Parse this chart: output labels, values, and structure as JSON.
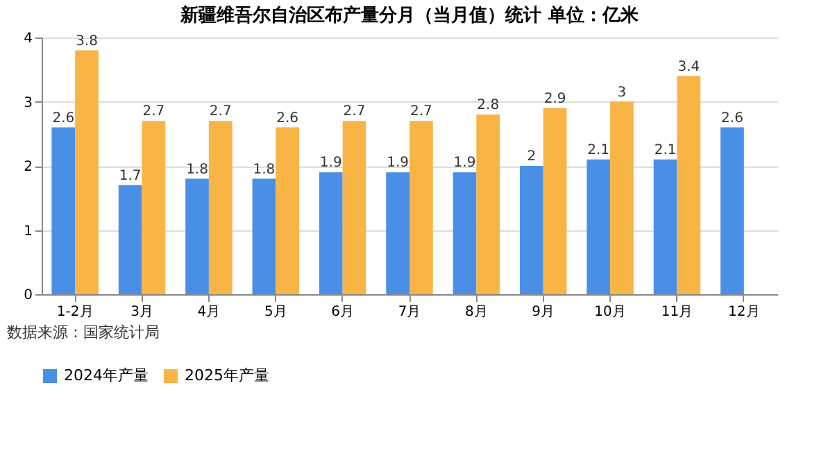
{
  "chart_data": {
    "type": "bar",
    "title": "新疆维吾尔自治区布产量分月（当月值）统计  单位：亿米",
    "categories": [
      "1-2月",
      "3月",
      "4月",
      "5月",
      "6月",
      "7月",
      "8月",
      "9月",
      "10月",
      "11月",
      "12月"
    ],
    "series": [
      {
        "name": "2024年产量",
        "color": "#4a8fe6",
        "values": [
          2.6,
          1.7,
          1.8,
          1.8,
          1.9,
          1.9,
          1.9,
          2,
          2.1,
          2.1,
          2.6
        ]
      },
      {
        "name": "2025年产量",
        "color": "#f8b445",
        "values": [
          3.8,
          2.7,
          2.7,
          2.6,
          2.7,
          2.7,
          2.8,
          2.9,
          3,
          3.4,
          null
        ]
      }
    ],
    "ylim": [
      0,
      4
    ],
    "yticks": [
      0,
      1,
      2,
      3,
      4
    ],
    "grid": "y",
    "legend": "bottom",
    "data_labels": true,
    "annotations": [
      "数据来源：国家统计局"
    ]
  }
}
